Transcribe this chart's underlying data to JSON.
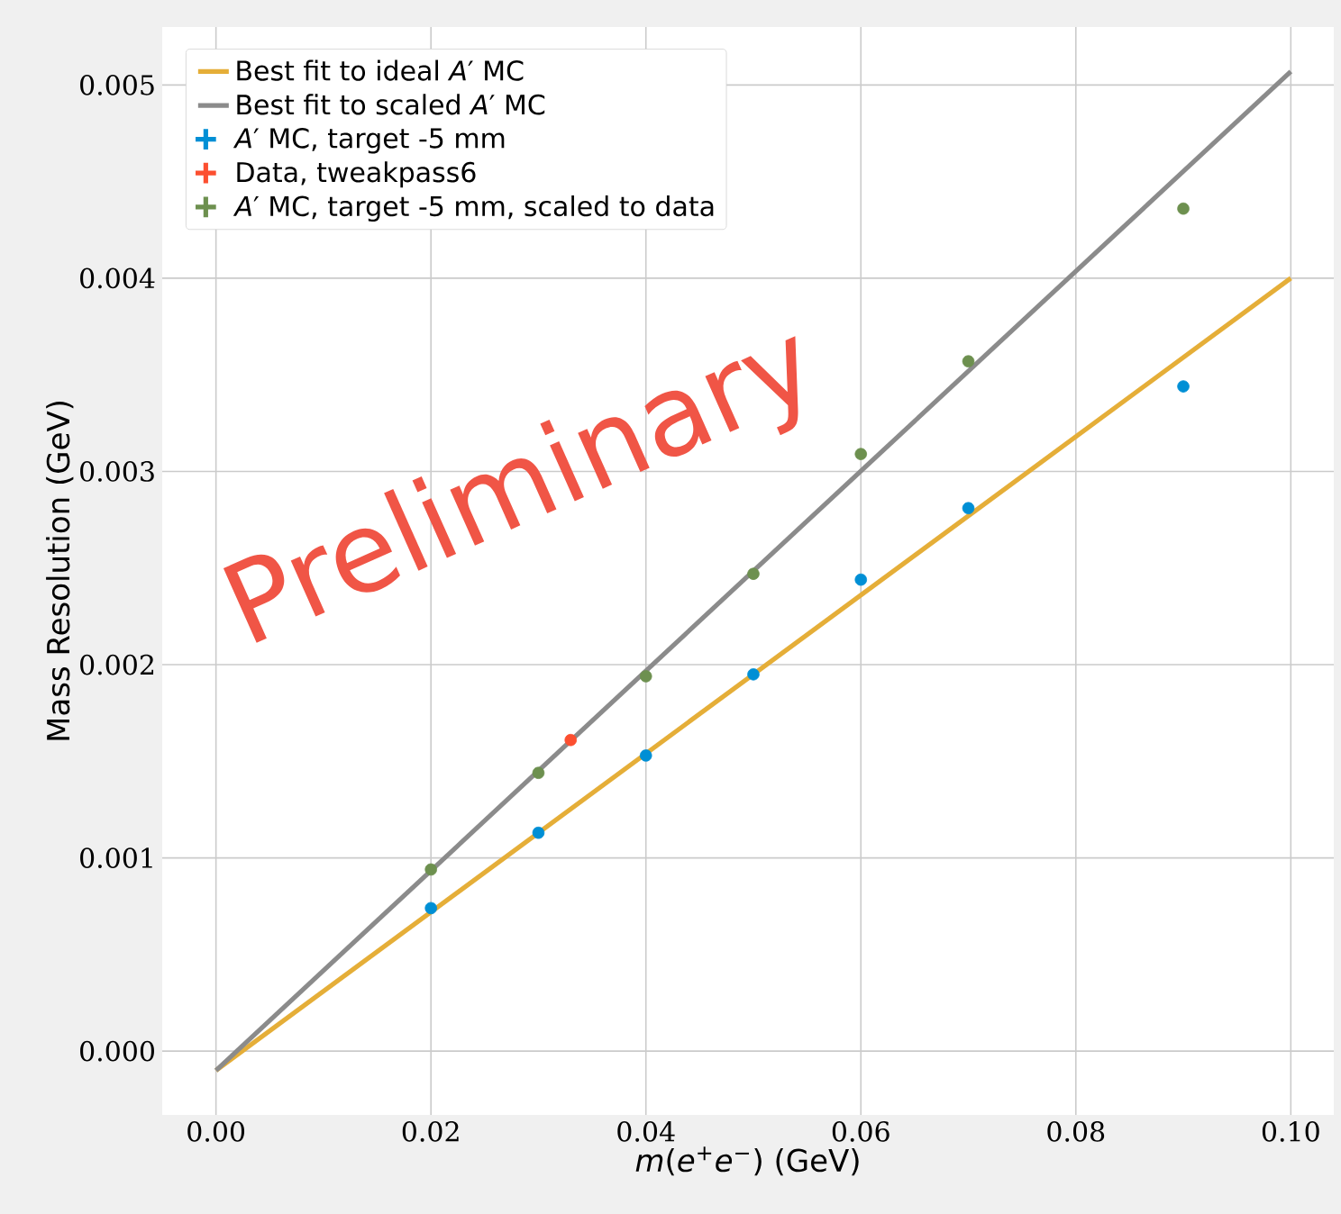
{
  "chart_data": {
    "type": "scatter",
    "xlabel": "*m*(*e*$^{+}$*e*$^{−}$) (GeV)",
    "ylabel": "Mass Resolution (GeV)",
    "xlim": [
      -0.005,
      0.104
    ],
    "ylim": [
      -0.00033,
      0.0053
    ],
    "xticks": [
      {
        "value": 0,
        "label": "0.00"
      },
      {
        "value": 0.02,
        "label": "0.02"
      },
      {
        "value": 0.04,
        "label": "0.04"
      },
      {
        "value": 0.06,
        "label": "0.06"
      },
      {
        "value": 0.08,
        "label": "0.08"
      },
      {
        "value": 0.1,
        "label": "0.10"
      }
    ],
    "yticks": [
      {
        "value": 0,
        "label": "0.000"
      },
      {
        "value": 0.001,
        "label": "0.001"
      },
      {
        "value": 0.002,
        "label": "0.002"
      },
      {
        "value": 0.003,
        "label": "0.003"
      },
      {
        "value": 0.004,
        "label": "0.004"
      },
      {
        "value": 0.005,
        "label": "0.005"
      }
    ],
    "grid": true,
    "legend": "top left",
    "marker": "circle",
    "annotations": [
      "Preliminary"
    ],
    "series": [
      {
        "name": "Best fit to ideal *A*′ MC",
        "type": "line",
        "marker": "none",
        "color": "#e5ae38",
        "x": [
          0,
          0.1
        ],
        "values": [
          -0.0001,
          0.004
        ]
      },
      {
        "name": "Best fit to scaled *A*′ MC",
        "type": "line",
        "marker": "none",
        "color": "#8b8b8b",
        "x": [
          0,
          0.1
        ],
        "values": [
          -0.0001,
          0.00507
        ]
      },
      {
        "name": "*A*′ MC, target -5 mm",
        "color": "#008fd5",
        "x": [
          0.02,
          0.03,
          0.04,
          0.05,
          0.06,
          0.07,
          0.09
        ],
        "values": [
          0.00074,
          0.00113,
          0.00153,
          0.00195,
          0.00244,
          0.00281,
          0.00344
        ]
      },
      {
        "name": "Data, tweakpass6",
        "color": "#fc4f30",
        "x": [
          0.033
        ],
        "values": [
          0.00161
        ]
      },
      {
        "name": "*A*′ MC, target -5 mm, scaled to data",
        "color": "#6d904f",
        "x": [
          0.02,
          0.03,
          0.04,
          0.05,
          0.06,
          0.07,
          0.09
        ],
        "values": [
          0.00094,
          0.00144,
          0.00194,
          0.00247,
          0.00309,
          0.00357,
          0.00436
        ]
      }
    ]
  }
}
